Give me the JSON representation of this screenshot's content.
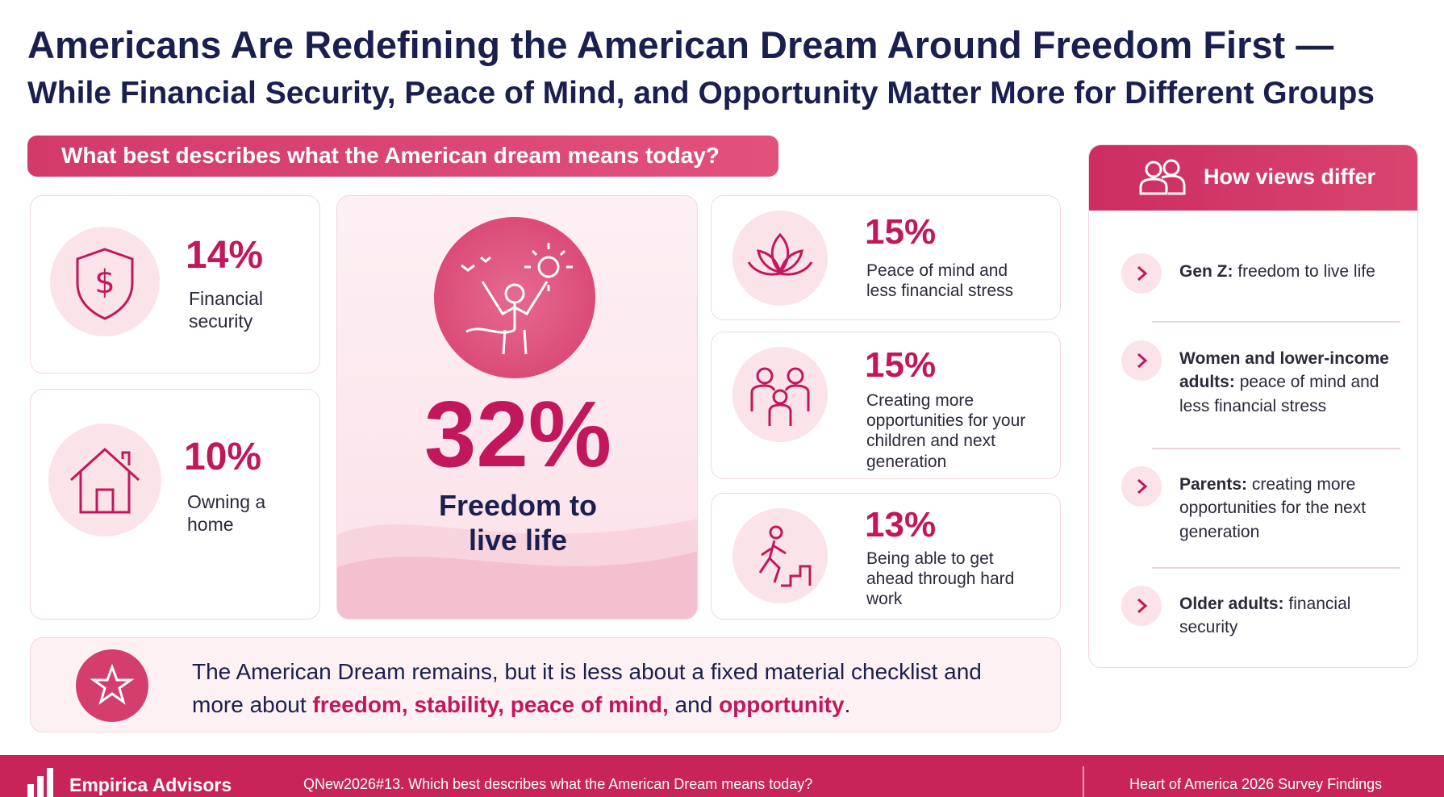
{
  "header": {
    "title_line1": "Americans Are Redefining the American Dream Around Freedom First —",
    "title_line2": "While Financial Security, Peace of Mind, and Opportunity Matter More for Different Groups"
  },
  "question": "What best describes what the American dream means today?",
  "cards": [
    {
      "percent": "14%",
      "label": "Financial security"
    },
    {
      "percent": "10%",
      "label": "Owning a home"
    },
    {
      "percent": "32%",
      "label": "Freedom to live life"
    },
    {
      "percent": "15%",
      "label": "Peace of mind and less financial stress"
    },
    {
      "percent": "15%",
      "label": "Creating more opportunities for your children and next generation"
    },
    {
      "percent": "13%",
      "label": "Being able to get ahead through hard work"
    }
  ],
  "sidebar": {
    "title": "How views differ",
    "items": [
      {
        "group": "Gen Z:",
        "text": "freedom to live life"
      },
      {
        "group": "Women and lower-income adults:",
        "text": "peace of mind and less financial stress"
      },
      {
        "group": "Parents:",
        "text": "creating more opportunities for the next generation"
      },
      {
        "group": "Older adults:",
        "text": "financial security"
      }
    ]
  },
  "summary": {
    "text_before": "The American Dream remains, but it is less about a fixed material checklist and more about ",
    "highlight_1": "freedom, stability, peace of mind,",
    "text_middle": " and ",
    "highlight_2": "opportunity",
    "text_end": "."
  },
  "footer": {
    "brand": "Empirica Advisors",
    "source": "QNew2026#13. Which best describes what the American Dream means today?",
    "report": "Heart of America 2026 Survey Findings"
  }
}
